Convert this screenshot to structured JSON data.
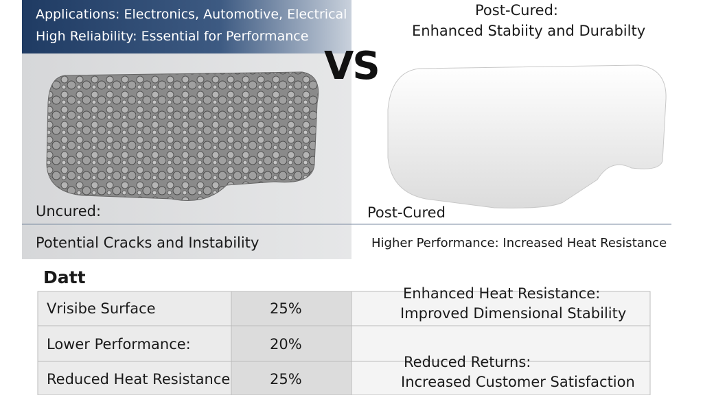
{
  "banner": {
    "line1": "Applications: Electronics, Automotive, Electrical",
    "line2": "High Reliability: Essential for Performance"
  },
  "vs": "VS",
  "right_header": {
    "title": "Post-Cured:",
    "subtitle": "Enhanced Stabiity and Durabilty"
  },
  "left_caption": {
    "label": "Uncured:",
    "text": "Potential Cracks and Instability"
  },
  "right_caption": {
    "label": "Post-Cured",
    "text": "Higher Performance: Increased Heat Resistance"
  },
  "table": {
    "title": "Datt",
    "rows": [
      [
        "Vrisibe Surface",
        "25%"
      ],
      [
        "Lower Performance:",
        "20%"
      ],
      [
        "Reduced Heat Resistance",
        "25%"
      ]
    ],
    "notes": [
      {
        "title": "Enhanced Heat Resistance:",
        "text": "Improved Dimensional Stability"
      },
      {
        "title": "Reduced Returns:",
        "text": "Increased Customer Satisfaction"
      }
    ]
  }
}
